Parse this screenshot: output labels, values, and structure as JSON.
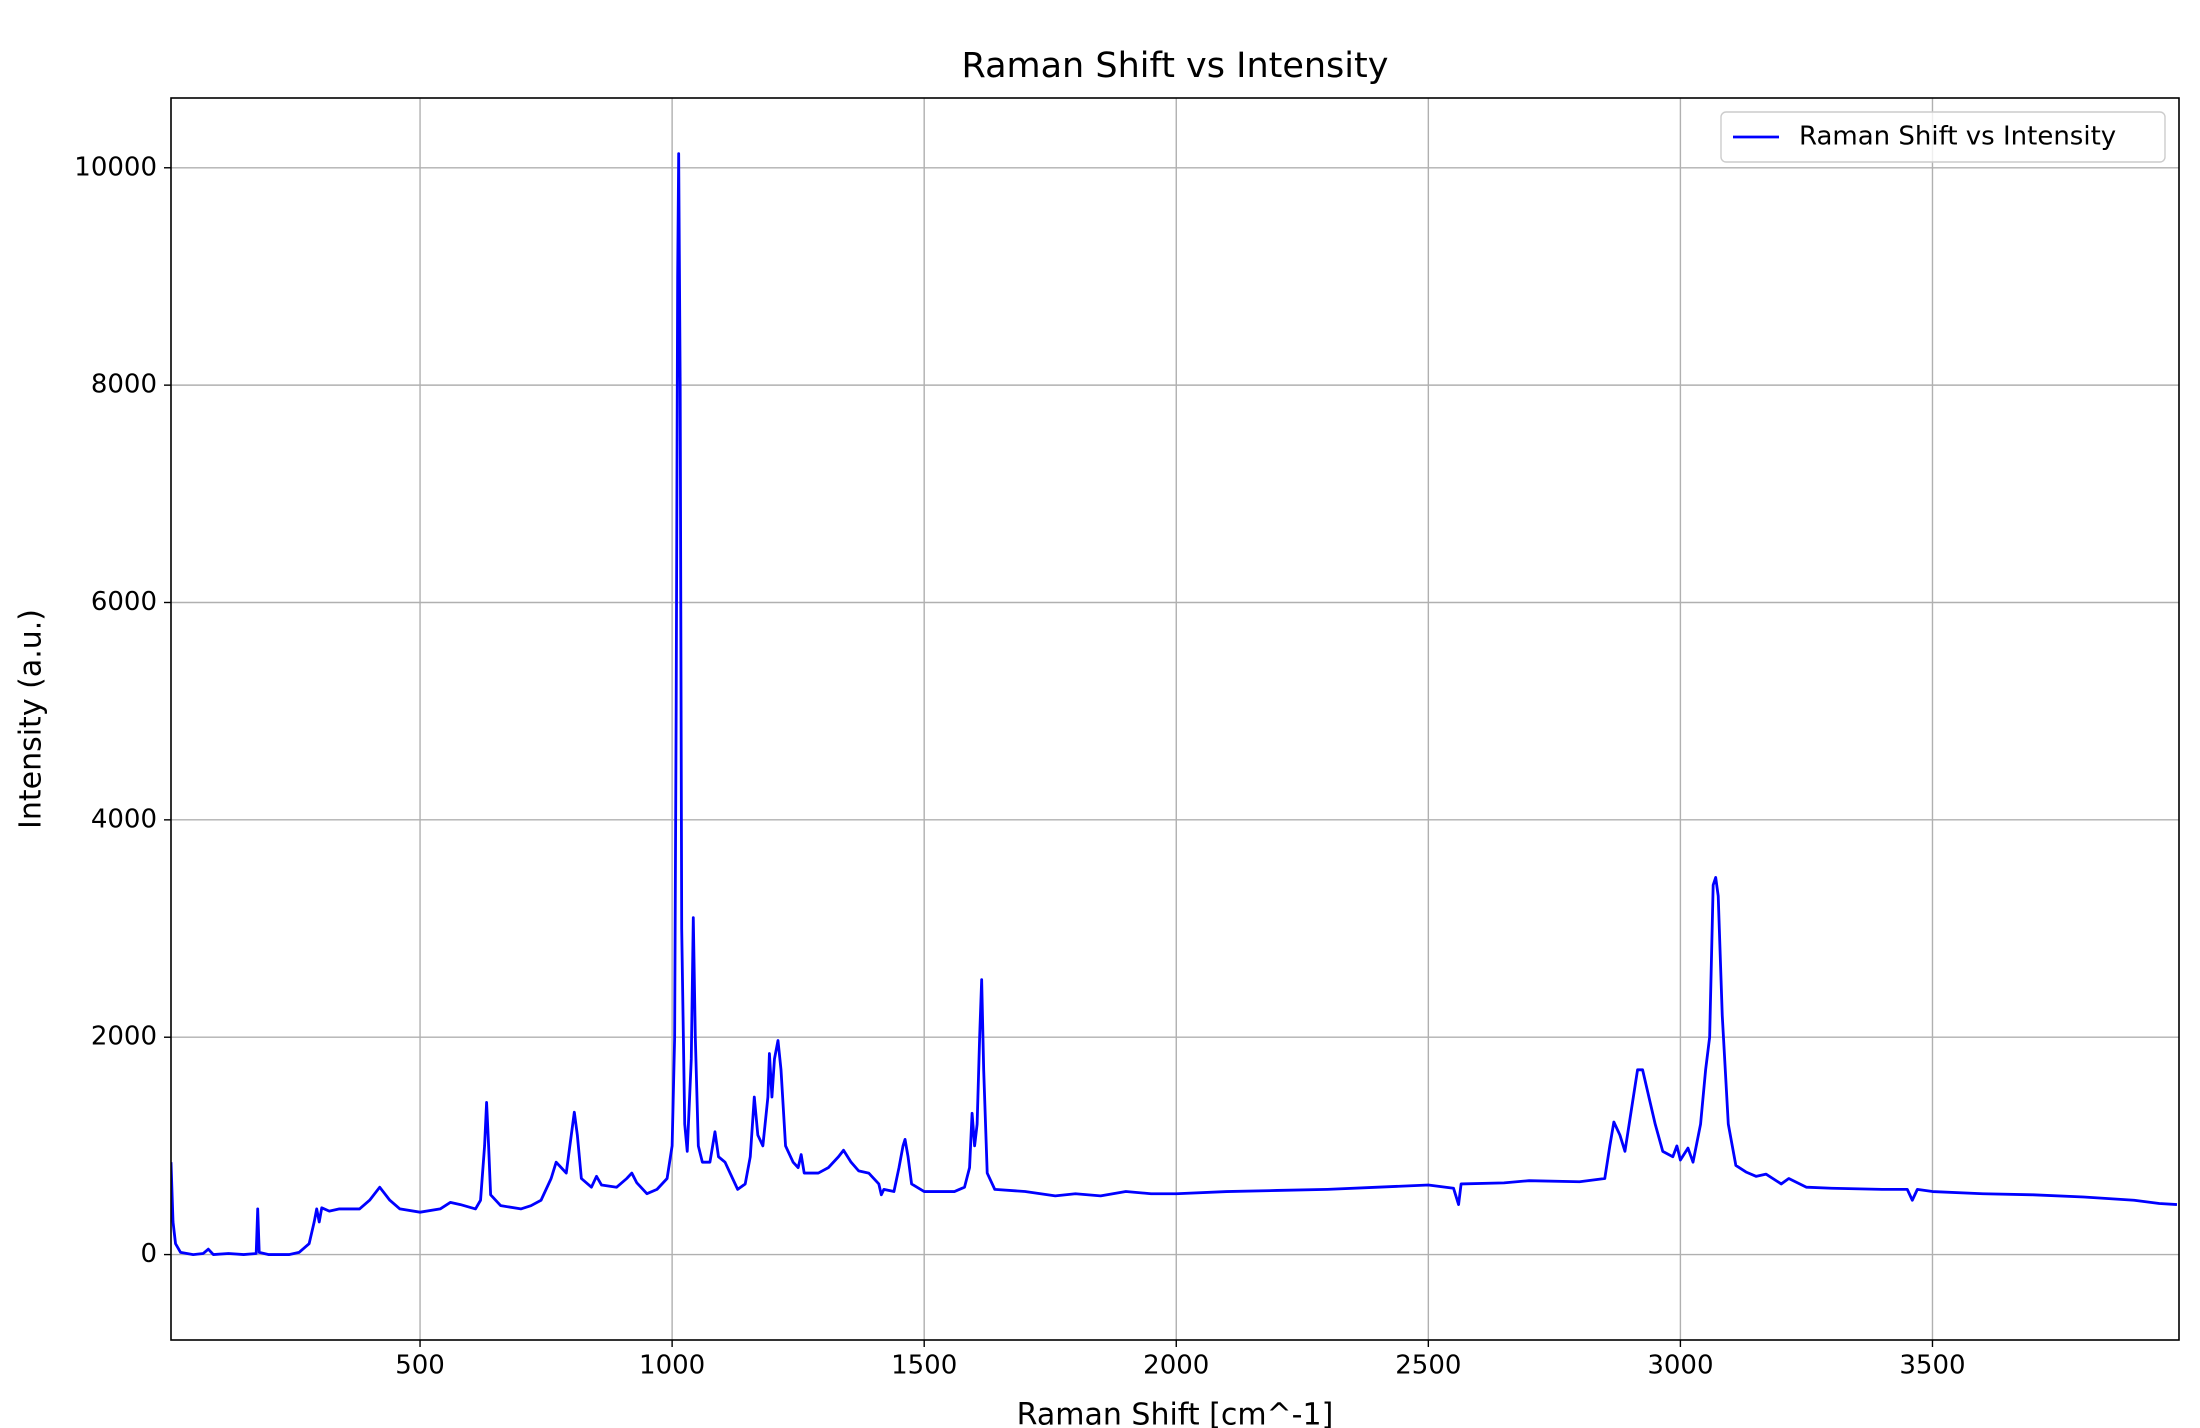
{
  "chart_data": {
    "type": "line",
    "title": "Raman Shift vs Intensity",
    "x_label": "Raman Shift [cm^-1]",
    "y_label": "Intensity (a.u.)",
    "xlim": [
      6,
      3989
    ],
    "ylim": [
      -786,
      10642
    ],
    "xticks": [
      500,
      1000,
      1500,
      2000,
      2500,
      3000,
      3500
    ],
    "yticks": [
      0,
      2000,
      4000,
      6000,
      8000,
      10000
    ],
    "grid": true,
    "legend": "upper right",
    "series": [
      {
        "name": "Raman Shift vs Intensity",
        "color": "#0000ff",
        "x": [
          6,
          10,
          15,
          25,
          50,
          70,
          80,
          90,
          120,
          150,
          175,
          178,
          181,
          200,
          240,
          260,
          280,
          290,
          295,
          300,
          305,
          320,
          340,
          380,
          400,
          420,
          440,
          460,
          500,
          540,
          560,
          580,
          610,
          620,
          628,
          632,
          636,
          640,
          660,
          700,
          720,
          740,
          760,
          770,
          780,
          790,
          800,
          806,
          812,
          820,
          840,
          850,
          860,
          890,
          910,
          920,
          930,
          950,
          970,
          990,
          1000,
          1005,
          1008,
          1011,
          1013,
          1016,
          1019,
          1025,
          1030,
          1038,
          1042,
          1046,
          1052,
          1060,
          1075,
          1085,
          1092,
          1105,
          1120,
          1130,
          1145,
          1155,
          1163,
          1170,
          1180,
          1190,
          1193,
          1198,
          1203,
          1210,
          1216,
          1225,
          1240,
          1250,
          1256,
          1262,
          1290,
          1310,
          1330,
          1340,
          1355,
          1370,
          1390,
          1410,
          1415,
          1420,
          1440,
          1450,
          1458,
          1462,
          1468,
          1475,
          1500,
          1540,
          1560,
          1580,
          1590,
          1595,
          1600,
          1605,
          1610,
          1614,
          1618,
          1625,
          1640,
          1700,
          1760,
          1800,
          1850,
          1900,
          1950,
          2000,
          2100,
          2200,
          2300,
          2400,
          2500,
          2550,
          2560,
          2565,
          2650,
          2700,
          2800,
          2850,
          2860,
          2868,
          2880,
          2890,
          2900,
          2915,
          2925,
          2935,
          2950,
          2965,
          2985,
          2993,
          3000,
          3015,
          3025,
          3040,
          3050,
          3058,
          3065,
          3070,
          3075,
          3083,
          3095,
          3110,
          3130,
          3150,
          3170,
          3200,
          3215,
          3250,
          3300,
          3400,
          3450,
          3460,
          3470,
          3500,
          3600,
          3700,
          3800,
          3900,
          3950,
          3985
        ],
        "values": [
          850,
          300,
          100,
          20,
          0,
          10,
          50,
          0,
          10,
          0,
          10,
          420,
          20,
          0,
          0,
          20,
          100,
          300,
          420,
          300,
          430,
          400,
          420,
          420,
          500,
          620,
          500,
          420,
          390,
          420,
          480,
          460,
          420,
          500,
          1000,
          1400,
          1000,
          550,
          450,
          420,
          450,
          500,
          700,
          850,
          800,
          750,
          1100,
          1310,
          1100,
          700,
          620,
          720,
          640,
          620,
          700,
          750,
          660,
          560,
          600,
          700,
          1000,
          2000,
          5000,
          9000,
          10130,
          8000,
          3000,
          1200,
          950,
          1800,
          3100,
          2000,
          1000,
          850,
          850,
          1130,
          900,
          850,
          700,
          600,
          650,
          900,
          1450,
          1100,
          1000,
          1450,
          1850,
          1450,
          1800,
          1970,
          1700,
          1000,
          850,
          800,
          920,
          750,
          750,
          800,
          900,
          960,
          850,
          770,
          750,
          650,
          550,
          600,
          580,
          800,
          1000,
          1060,
          900,
          650,
          580,
          580,
          580,
          620,
          800,
          1300,
          1000,
          1200,
          2000,
          2530,
          1700,
          750,
          600,
          580,
          540,
          560,
          540,
          580,
          560,
          560,
          580,
          590,
          600,
          620,
          640,
          610,
          460,
          650,
          660,
          680,
          670,
          700,
          1000,
          1220,
          1100,
          950,
          1250,
          1700,
          1700,
          1500,
          1200,
          950,
          900,
          1000,
          870,
          980,
          850,
          1200,
          1700,
          2000,
          3400,
          3470,
          3300,
          2200,
          1200,
          820,
          760,
          720,
          740,
          650,
          700,
          620,
          610,
          600,
          600,
          500,
          600,
          580,
          560,
          550,
          530,
          500,
          470,
          460
        ]
      }
    ]
  }
}
